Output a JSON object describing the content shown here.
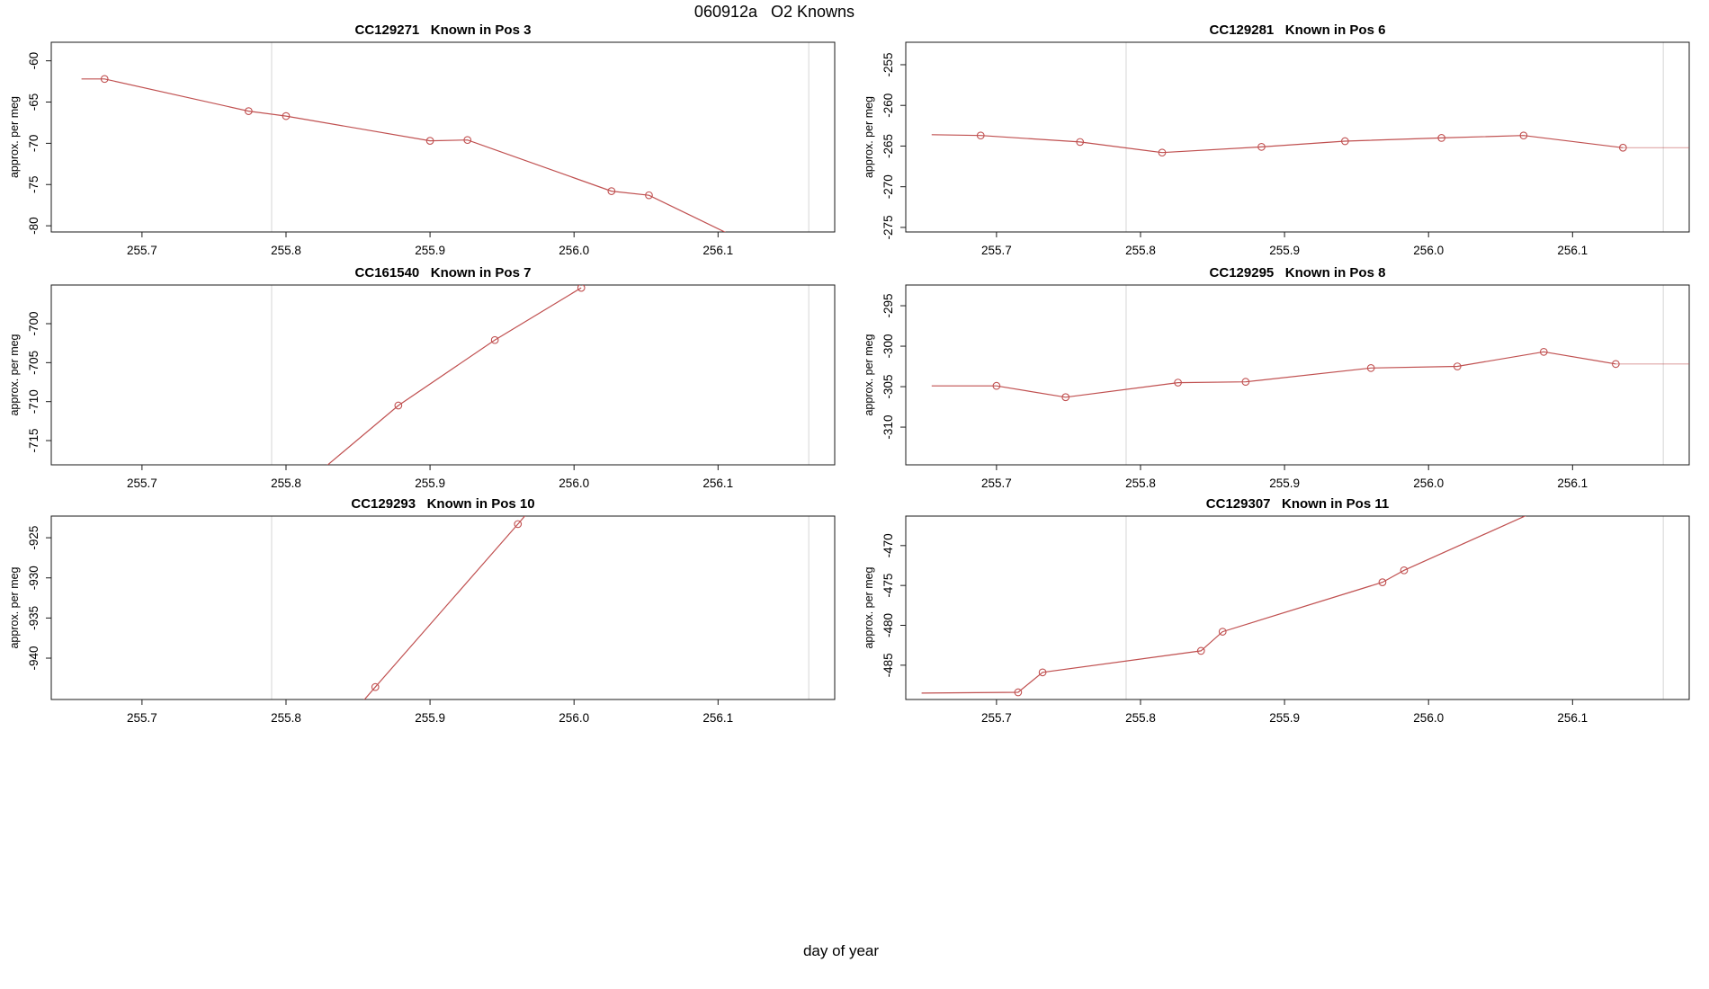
{
  "figure": {
    "title": "060912a   O2 Knowns",
    "xlabel": "day of year",
    "background": "#ffffff",
    "line_color": "#c05050",
    "grid_color": "#dcdcdc",
    "axis_color": "#1a1a1a"
  },
  "chart_data": [
    {
      "type": "line",
      "title": "CC129271   Known in Pos 3",
      "ylabel": "approx. per meg",
      "grid_pos": {
        "row": 0,
        "col": 0
      },
      "xlim": [
        255.637,
        256.181
      ],
      "ylim": [
        -80.75,
        -57.75
      ],
      "x_ticks": [
        255.7,
        255.8,
        255.9,
        256.0,
        256.1
      ],
      "x_tick_labels": [
        "255.7",
        "255.8",
        "255.9",
        "256.0",
        "256.1"
      ],
      "y_ticks": [
        -60,
        -65,
        -70,
        -75,
        -80
      ],
      "gridlines_x": [
        255.79,
        256.163
      ],
      "line": [
        [
          255.658,
          -62.2
        ],
        [
          255.674,
          -62.2
        ],
        [
          255.774,
          -66.1
        ],
        [
          255.8,
          -66.7
        ],
        [
          255.9,
          -69.7
        ],
        [
          255.926,
          -69.6
        ],
        [
          256.026,
          -75.8
        ],
        [
          256.052,
          -76.3
        ],
        [
          256.13,
          -82.9
        ]
      ],
      "tail": null,
      "markers": [
        [
          255.674,
          -62.2
        ],
        [
          255.774,
          -66.1
        ],
        [
          255.8,
          -66.7
        ],
        [
          255.9,
          -69.7
        ],
        [
          255.926,
          -69.6
        ],
        [
          256.026,
          -75.8
        ],
        [
          256.052,
          -76.3
        ]
      ]
    },
    {
      "type": "line",
      "title": "CC129281   Known in Pos 6",
      "ylabel": "approx. per meg",
      "grid_pos": {
        "row": 0,
        "col": 1
      },
      "xlim": [
        255.637,
        256.181
      ],
      "ylim": [
        -275.56,
        -252.24
      ],
      "x_ticks": [
        255.7,
        255.8,
        255.9,
        256.0,
        256.1
      ],
      "x_tick_labels": [
        "255.7",
        "255.8",
        "255.9",
        "256.0",
        "256.1"
      ],
      "y_ticks": [
        -255,
        -260,
        -265,
        -270,
        -275
      ],
      "gridlines_x": [
        255.79,
        256.163
      ],
      "line": [
        [
          255.655,
          -263.6
        ],
        [
          255.689,
          -263.7
        ],
        [
          255.758,
          -264.5
        ],
        [
          255.815,
          -265.8
        ],
        [
          255.884,
          -265.1
        ],
        [
          255.942,
          -264.4
        ],
        [
          256.009,
          -264.0
        ],
        [
          256.066,
          -263.7
        ],
        [
          256.135,
          -265.2
        ]
      ],
      "tail": [
        [
          256.135,
          -265.2
        ],
        [
          256.181,
          -265.2
        ]
      ],
      "markers": [
        [
          255.689,
          -263.7
        ],
        [
          255.758,
          -264.5
        ],
        [
          255.815,
          -265.8
        ],
        [
          255.884,
          -265.1
        ],
        [
          255.942,
          -264.4
        ],
        [
          256.009,
          -264.0
        ],
        [
          256.066,
          -263.7
        ],
        [
          256.135,
          -265.2
        ]
      ]
    },
    {
      "type": "line",
      "title": "CC161540   Known in Pos 7",
      "ylabel": "approx. per meg",
      "grid_pos": {
        "row": 1,
        "col": 0
      },
      "xlim": [
        255.637,
        256.181
      ],
      "ylim": [
        -718.11,
        -695.04
      ],
      "x_ticks": [
        255.7,
        255.8,
        255.9,
        256.0,
        256.1
      ],
      "x_tick_labels": [
        "255.7",
        "255.8",
        "255.9",
        "256.0",
        "256.1"
      ],
      "y_ticks": [
        -700,
        -705,
        -710,
        -715
      ],
      "gridlines_x": [
        255.79,
        256.163
      ],
      "line": [
        [
          255.82,
          -719.5
        ],
        [
          255.878,
          -710.5
        ],
        [
          255.945,
          -702.1
        ],
        [
          256.005,
          -695.4
        ]
      ],
      "tail": null,
      "markers": [
        [
          255.878,
          -710.5
        ],
        [
          255.945,
          -702.1
        ],
        [
          256.005,
          -695.4
        ]
      ]
    },
    {
      "type": "line",
      "title": "CC129295   Known in Pos 8",
      "ylabel": "approx. per meg",
      "grid_pos": {
        "row": 1,
        "col": 1
      },
      "xlim": [
        255.637,
        256.181
      ],
      "ylim": [
        -314.66,
        -292.44
      ],
      "x_ticks": [
        255.7,
        255.8,
        255.9,
        256.0,
        256.1
      ],
      "x_tick_labels": [
        "255.7",
        "255.8",
        "255.9",
        "256.0",
        "256.1"
      ],
      "y_ticks": [
        -295,
        -300,
        -305,
        -310
      ],
      "gridlines_x": [
        255.79,
        256.163
      ],
      "line": [
        [
          255.655,
          -304.9
        ],
        [
          255.7,
          -304.9
        ],
        [
          255.748,
          -306.3
        ],
        [
          255.826,
          -304.5
        ],
        [
          255.873,
          -304.4
        ],
        [
          255.96,
          -302.7
        ],
        [
          256.02,
          -302.5
        ],
        [
          256.08,
          -300.7
        ],
        [
          256.13,
          -302.2
        ]
      ],
      "tail": [
        [
          256.13,
          -302.2
        ],
        [
          256.181,
          -302.2
        ]
      ],
      "markers": [
        [
          255.7,
          -304.9
        ],
        [
          255.748,
          -306.3
        ],
        [
          255.826,
          -304.5
        ],
        [
          255.873,
          -304.4
        ],
        [
          255.96,
          -302.7
        ],
        [
          256.02,
          -302.5
        ],
        [
          256.08,
          -300.7
        ],
        [
          256.13,
          -302.2
        ]
      ]
    },
    {
      "type": "line",
      "title": "CC129293   Known in Pos 10",
      "ylabel": "approx. per meg",
      "grid_pos": {
        "row": 2,
        "col": 0
      },
      "xlim": [
        255.637,
        256.181
      ],
      "ylim": [
        -945.15,
        -922.3
      ],
      "x_ticks": [
        255.7,
        255.8,
        255.9,
        256.0,
        256.1
      ],
      "x_tick_labels": [
        "255.7",
        "255.8",
        "255.9",
        "256.0",
        "256.1"
      ],
      "y_ticks": [
        -925,
        -930,
        -935,
        -940
      ],
      "gridlines_x": [
        255.79,
        256.163
      ],
      "line": [
        [
          255.848,
          -946.5
        ],
        [
          255.862,
          -943.6
        ],
        [
          255.961,
          -923.3
        ],
        [
          255.972,
          -921.0
        ]
      ],
      "tail": null,
      "markers": [
        [
          255.862,
          -943.6
        ],
        [
          255.961,
          -923.3
        ]
      ]
    },
    {
      "type": "line",
      "title": "CC129307   Known in Pos 11",
      "ylabel": "approx. per meg",
      "grid_pos": {
        "row": 2,
        "col": 1
      },
      "xlim": [
        255.637,
        256.181
      ],
      "ylim": [
        -489.3,
        -466.3
      ],
      "x_ticks": [
        255.7,
        255.8,
        255.9,
        256.0,
        256.1
      ],
      "x_tick_labels": [
        "255.7",
        "255.8",
        "255.9",
        "256.0",
        "256.1"
      ],
      "y_ticks": [
        -470,
        -475,
        -480,
        -485
      ],
      "gridlines_x": [
        255.79,
        256.163
      ],
      "line": [
        [
          255.648,
          -488.5
        ],
        [
          255.715,
          -488.4
        ],
        [
          255.732,
          -485.9
        ],
        [
          255.842,
          -483.2
        ],
        [
          255.857,
          -480.8
        ],
        [
          255.968,
          -474.6
        ],
        [
          255.983,
          -473.1
        ],
        [
          256.12,
          -462.0
        ]
      ],
      "tail": null,
      "markers": [
        [
          255.715,
          -488.4
        ],
        [
          255.732,
          -485.9
        ],
        [
          255.842,
          -483.2
        ],
        [
          255.857,
          -480.8
        ],
        [
          255.968,
          -474.6
        ],
        [
          255.983,
          -473.1
        ]
      ]
    }
  ]
}
